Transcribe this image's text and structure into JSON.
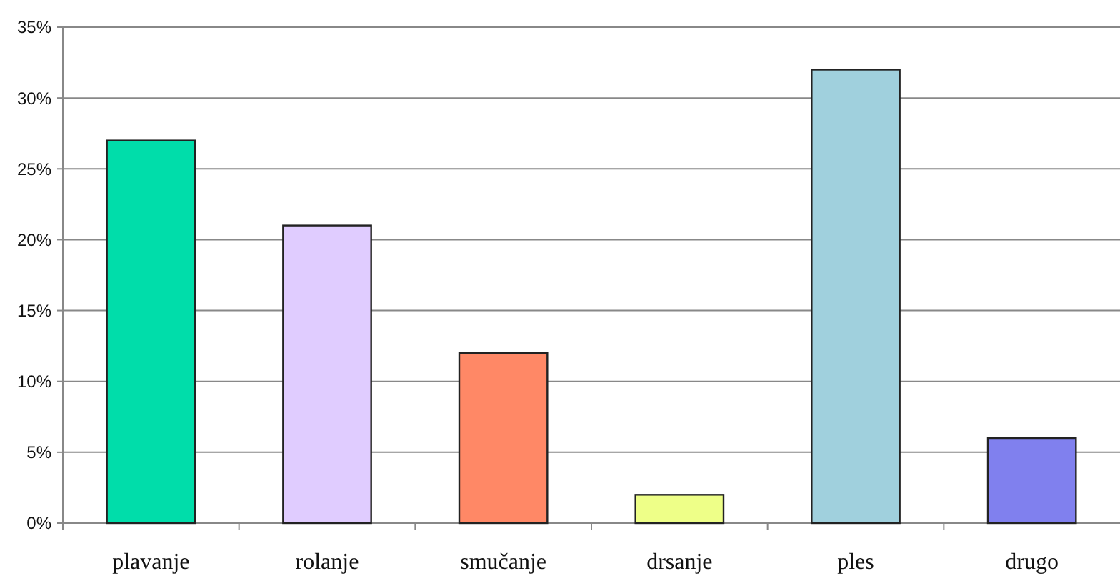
{
  "chart_data": {
    "type": "bar",
    "categories": [
      "plavanje",
      "rolanje",
      "smučanje",
      "drsanje",
      "ples",
      "drugo"
    ],
    "values": [
      27,
      21,
      12,
      2,
      32,
      6
    ],
    "colors": [
      "#00ddaa",
      "#e0ccff",
      "#ff8866",
      "#eeff88",
      "#a0d0dd",
      "#8080ee"
    ],
    "ylim": [
      0,
      35
    ],
    "yticks": [
      {
        "value": 0,
        "label": "0%"
      },
      {
        "value": 5,
        "label": "5%"
      },
      {
        "value": 10,
        "label": "10%"
      },
      {
        "value": 15,
        "label": "15%"
      },
      {
        "value": 20,
        "label": "20%"
      },
      {
        "value": 25,
        "label": "25%"
      },
      {
        "value": 30,
        "label": "30%"
      },
      {
        "value": 35,
        "label": "35%"
      }
    ],
    "grid": "y"
  }
}
